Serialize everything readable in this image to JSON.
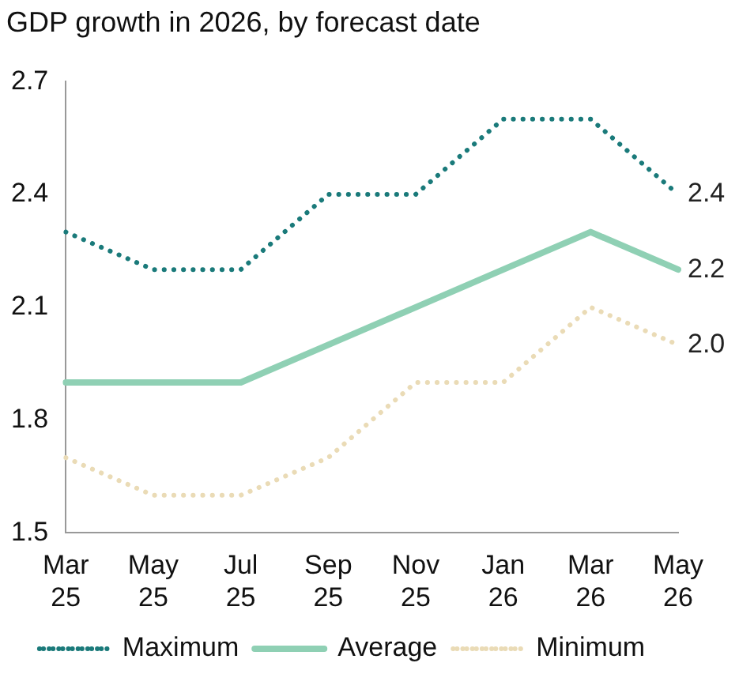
{
  "chart_data": {
    "type": "line",
    "title": "GDP growth in 2026, by forecast date",
    "categories": [
      "Mar 25",
      "May 25",
      "Jul 25",
      "Sep 25",
      "Nov 25",
      "Jan 26",
      "Mar 26",
      "May 26"
    ],
    "series": [
      {
        "name": "Maximum",
        "color": "#1a7a7a",
        "line_style": "dotted",
        "values": [
          2.3,
          2.2,
          2.2,
          2.4,
          2.4,
          2.6,
          2.6,
          2.4
        ],
        "value_labels": [
          null,
          null,
          null,
          null,
          null,
          null,
          null,
          "2.4"
        ]
      },
      {
        "name": "Average",
        "color": "#8fd0b4",
        "line_style": "solid",
        "values": [
          1.9,
          1.9,
          1.9,
          2.0,
          2.1,
          2.2,
          2.3,
          2.2
        ],
        "value_labels": [
          null,
          null,
          null,
          null,
          null,
          null,
          null,
          "2.2"
        ]
      },
      {
        "name": "Minimum",
        "color": "#eadbb6",
        "line_style": "dotted",
        "values": [
          1.7,
          1.6,
          1.6,
          1.7,
          1.9,
          1.9,
          2.1,
          2.0
        ],
        "value_labels": [
          null,
          null,
          null,
          null,
          null,
          null,
          null,
          "2.0"
        ]
      }
    ],
    "ylim": [
      1.5,
      2.7
    ],
    "yticks": [
      "1.5",
      "1.8",
      "2.1",
      "2.4",
      "2.7"
    ],
    "grid": false,
    "legend": "bottom",
    "marker": "none"
  }
}
